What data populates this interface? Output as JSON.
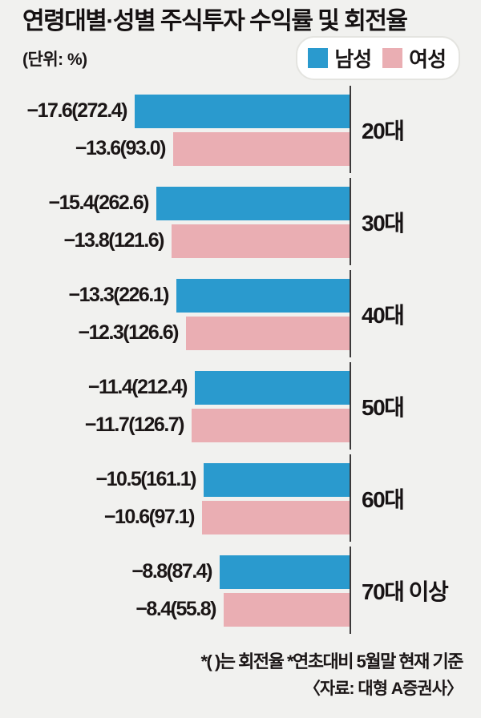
{
  "title": "연령대별·성별 주식투자 수익률 및 회전율",
  "unit_label": "(단위: %)",
  "legend": {
    "male": {
      "label": "남성",
      "color": "#2a9ace"
    },
    "female": {
      "label": "여성",
      "color": "#eaaeb3"
    }
  },
  "chart_data": {
    "type": "bar",
    "orientation": "horizontal-left",
    "title": "연령대별·성별 주식투자 수익률 및 회전율",
    "unit": "%",
    "categories": [
      "20대",
      "30대",
      "40대",
      "50대",
      "60대",
      "70대 이상"
    ],
    "series": [
      {
        "name": "남성",
        "color": "#2a9ace",
        "return_pct": [
          -17.6,
          -15.4,
          -13.3,
          -11.4,
          -10.5,
          -8.8
        ],
        "turnover_pct": [
          272.4,
          262.6,
          226.1,
          212.4,
          161.1,
          87.4
        ]
      },
      {
        "name": "여성",
        "color": "#eaaeb3",
        "return_pct": [
          -13.6,
          -13.8,
          -12.3,
          -11.7,
          -10.6,
          -8.4
        ],
        "turnover_pct": [
          93.0,
          121.6,
          126.6,
          126.7,
          97.1,
          55.8
        ]
      }
    ],
    "groups": [
      {
        "age": "20대",
        "male": {
          "label": "−17.6(272.4)",
          "value": 17.6
        },
        "female": {
          "label": "−13.6(93.0)",
          "value": 13.6
        }
      },
      {
        "age": "30대",
        "male": {
          "label": "−15.4(262.6)",
          "value": 15.4
        },
        "female": {
          "label": "−13.8(121.6)",
          "value": 13.8
        }
      },
      {
        "age": "40대",
        "male": {
          "label": "−13.3(226.1)",
          "value": 13.3
        },
        "female": {
          "label": "−12.3(126.6)",
          "value": 12.3
        }
      },
      {
        "age": "50대",
        "male": {
          "label": "−11.4(212.4)",
          "value": 11.4
        },
        "female": {
          "label": "−11.7(126.7)",
          "value": 11.7
        }
      },
      {
        "age": "60대",
        "male": {
          "label": "−10.5(161.1)",
          "value": 10.5
        },
        "female": {
          "label": "−10.6(97.1)",
          "value": 10.6
        }
      },
      {
        "age": "70대 이상",
        "male": {
          "label": "−8.8(87.4)",
          "value": 8.8
        },
        "female": {
          "label": "−8.4(55.8)",
          "value": 8.4
        }
      }
    ],
    "legend_position": "top-right",
    "grid": false
  },
  "footnote": "*(  )는 회전율 *연초대비 5월말 현재 기준",
  "source": "〈자료: 대형 A증권사〉"
}
